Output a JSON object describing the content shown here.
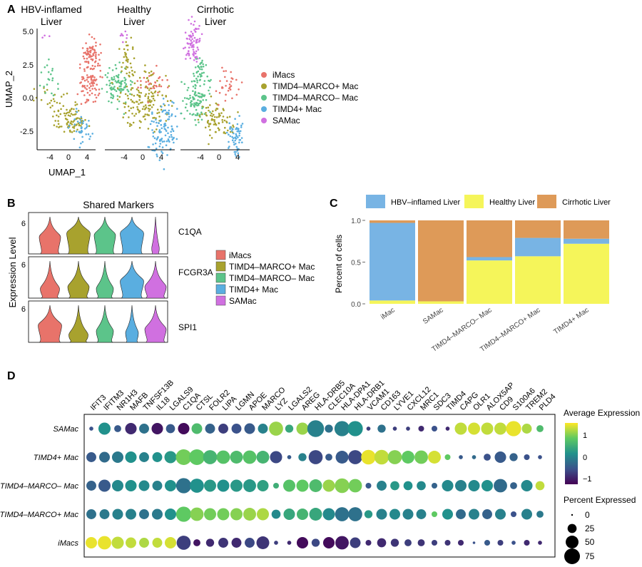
{
  "panel_letters": {
    "a": "A",
    "b": "B",
    "c": "C",
    "d": "D"
  },
  "palette": {
    "iMacs": "#e8736a",
    "TIMD4-MARCO+ Mac": "#a8a22e",
    "TIMD4-MARCO- Mac": "#5cc48a",
    "TIMD4+ Mac": "#5aaee0",
    "SAMac": "#d070e0"
  },
  "umap": {
    "panel_titles": [
      [
        "HBV-inflamed",
        "Liver"
      ],
      [
        "Healthy",
        "Liver"
      ],
      [
        "Cirrhotic",
        "Liver"
      ]
    ],
    "xlabel": "UMAP_1",
    "ylabel": "UMAP_2",
    "yticks": [
      "5.0",
      "2.5",
      "0.0",
      "-2.5"
    ],
    "xticks": [
      "-4",
      "0",
      "4"
    ],
    "legend": [
      {
        "label": "iMacs",
        "color": "#e8736a"
      },
      {
        "label": "TIMD4–MARCO+ Mac",
        "color": "#a8a22e"
      },
      {
        "label": "TIMD4–MARCO– Mac",
        "color": "#5cc48a"
      },
      {
        "label": "TIMD4+ Mac",
        "color": "#5aaee0"
      },
      {
        "label": "SAMac",
        "color": "#d070e0"
      }
    ]
  },
  "violin": {
    "title": "Shared Markers",
    "ylabel": "Expression Level",
    "genes": [
      "C1QA",
      "FCGR3A",
      "SPI1"
    ],
    "ytick": "6",
    "groups": [
      "iMacs",
      "TIMD4–MARCO+ Mac",
      "TIMD4–MARCO– Mac",
      "TIMD4+ Mac",
      "SAMac"
    ],
    "colors": [
      "#e8736a",
      "#a8a22e",
      "#5cc48a",
      "#5aaee0",
      "#d070e0"
    ]
  },
  "chart_data": [
    {
      "type": "bar",
      "title": "Percent of cells by liver condition",
      "ylabel": "Percent of cells",
      "ylim": [
        0,
        1
      ],
      "yticks": [
        "0.0",
        "0.5",
        "1.0"
      ],
      "categories": [
        "iMac",
        "SAMac",
        "TIMD4–MARCO– Mac",
        "TIMD4–MARCO+ Mac",
        "TIMD4+ Mac"
      ],
      "series": [
        {
          "name": "Healthy Liver",
          "color": "#f5f55a",
          "values": [
            0.04,
            0.03,
            0.52,
            0.57,
            0.72
          ]
        },
        {
          "name": "HBV–inflamed Liver",
          "color": "#78b4e4",
          "values": [
            0.93,
            0.0,
            0.04,
            0.22,
            0.06
          ]
        },
        {
          "name": "Cirrhotic Liver",
          "color": "#de9a58",
          "values": [
            0.03,
            0.97,
            0.44,
            0.21,
            0.22
          ]
        }
      ],
      "legend_order": [
        "HBV–inflamed Liver",
        "Healthy Liver",
        "Cirrhotic Liver"
      ]
    },
    {
      "type": "dot",
      "genes": [
        "IFIT3",
        "IFITM3",
        "NR1H3",
        "MAFB",
        "TNFSF13B",
        "IL18",
        "LGALS9",
        "C1QA",
        "CTSL",
        "FOLR2",
        "LIPA",
        "LGMN",
        "APOE",
        "MARCO",
        "LYZ",
        "LGALS2",
        "AREG",
        "HLA-DRB5",
        "CLEC10A",
        "HLA-DPA1",
        "HLA-DRB1",
        "VCAM1",
        "CD163",
        "LYVE1",
        "CXCL12",
        "MRC1",
        "SDC3",
        "TIMD4",
        "CAPG",
        "OLR1",
        "ALOX5AP",
        "CD9",
        "S100A6",
        "TREM2",
        "PLD4"
      ],
      "groups": [
        "SAMac",
        "TIMD4+ Mac",
        "TIMD4–MARCO– Mac",
        "TIMD4–MARCO+ Mac",
        "iMacs"
      ],
      "avg_expression": [
        [
          -0.6,
          0.2,
          -0.5,
          -1.0,
          -0.2,
          -1.2,
          -0.5,
          -1.3,
          0.8,
          -0.4,
          -0.8,
          -0.6,
          -0.5,
          0.0,
          1.3,
          0.5,
          1.3,
          0.0,
          -0.2,
          0.0,
          0.2,
          -0.8,
          -0.2,
          -0.8,
          -0.8,
          -1.0,
          -0.6,
          -1.0,
          1.5,
          1.6,
          1.5,
          1.5,
          1.7,
          1.4,
          0.8
        ],
        [
          -0.5,
          -0.3,
          -0.1,
          0.2,
          0.0,
          0.2,
          0.3,
          1.1,
          1.0,
          0.7,
          0.9,
          0.8,
          0.9,
          0.7,
          -0.7,
          -0.5,
          0.0,
          -0.7,
          -0.5,
          -0.5,
          -0.7,
          1.7,
          1.5,
          1.2,
          1.0,
          1.1,
          1.6,
          1.0,
          -0.5,
          -0.3,
          -0.6,
          -0.5,
          -0.4,
          -0.6,
          -0.6
        ],
        [
          -0.4,
          -0.5,
          0.1,
          0.2,
          0.1,
          0.0,
          0.2,
          -0.2,
          0.2,
          0.3,
          0.2,
          0.3,
          0.3,
          0.4,
          0.6,
          0.9,
          1.0,
          0.8,
          1.3,
          1.2,
          1.1,
          -0.5,
          0.0,
          0.3,
          0.2,
          0.1,
          -0.4,
          0.1,
          0.0,
          0.1,
          0.2,
          -0.3,
          -0.4,
          0.1,
          1.5
        ],
        [
          -0.2,
          -0.1,
          0.0,
          0.0,
          -0.2,
          -0.1,
          0.2,
          1.0,
          1.2,
          1.1,
          1.1,
          1.2,
          1.3,
          1.4,
          0.1,
          0.5,
          0.7,
          0.5,
          0.1,
          -0.2,
          -0.2,
          0.3,
          0.0,
          0.1,
          0.0,
          0.0,
          1.0,
          0.2,
          -0.3,
          0.0,
          -0.4,
          0.0,
          -0.6,
          0.0,
          -0.1
        ],
        [
          1.7,
          1.7,
          1.5,
          1.5,
          1.4,
          1.5,
          1.6,
          -0.8,
          -1.2,
          -1.0,
          -0.9,
          -1.0,
          -0.7,
          -0.9,
          -0.8,
          -1.0,
          -1.3,
          -0.7,
          -1.3,
          -1.2,
          -0.8,
          -1.0,
          -1.0,
          -0.9,
          -0.8,
          -0.9,
          -0.8,
          -0.9,
          -1.0,
          -0.6,
          -0.5,
          -0.8,
          -0.6,
          -1.0,
          -1.0
        ]
      ],
      "pct_expressed": [
        [
          5,
          45,
          15,
          40,
          30,
          40,
          25,
          40,
          35,
          30,
          30,
          30,
          35,
          30,
          60,
          20,
          45,
          85,
          20,
          70,
          70,
          5,
          20,
          5,
          5,
          10,
          10,
          5,
          45,
          45,
          45,
          45,
          70,
          30,
          15
        ],
        [
          30,
          35,
          40,
          40,
          30,
          30,
          45,
          75,
          75,
          60,
          55,
          50,
          55,
          50,
          45,
          5,
          20,
          60,
          15,
          50,
          60,
          65,
          65,
          60,
          50,
          55,
          50,
          10,
          5,
          5,
          15,
          40,
          20,
          10,
          5
        ],
        [
          30,
          45,
          40,
          40,
          35,
          30,
          40,
          70,
          60,
          45,
          45,
          45,
          50,
          40,
          10,
          45,
          45,
          50,
          45,
          65,
          55,
          10,
          30,
          25,
          25,
          25,
          10,
          40,
          40,
          40,
          40,
          55,
          15,
          40,
          25
        ],
        [
          30,
          30,
          35,
          35,
          30,
          35,
          40,
          70,
          55,
          45,
          45,
          45,
          50,
          45,
          25,
          40,
          40,
          50,
          45,
          60,
          60,
          20,
          35,
          35,
          35,
          30,
          10,
          35,
          30,
          35,
          30,
          35,
          10,
          35,
          15
        ],
        [
          40,
          55,
          45,
          35,
          30,
          30,
          40,
          60,
          15,
          20,
          30,
          30,
          30,
          50,
          5,
          5,
          40,
          20,
          40,
          55,
          35,
          10,
          25,
          20,
          15,
          15,
          10,
          10,
          10,
          2,
          10,
          10,
          5,
          10,
          5
        ]
      ],
      "color_legend": {
        "title": "Average Expression",
        "ticks": [
          "1",
          "0",
          "−1"
        ]
      },
      "size_legend": {
        "title": "Percent Expressed",
        "labels": [
          "0",
          "25",
          "50",
          "75"
        ],
        "values": [
          0,
          25,
          50,
          75
        ]
      }
    }
  ]
}
